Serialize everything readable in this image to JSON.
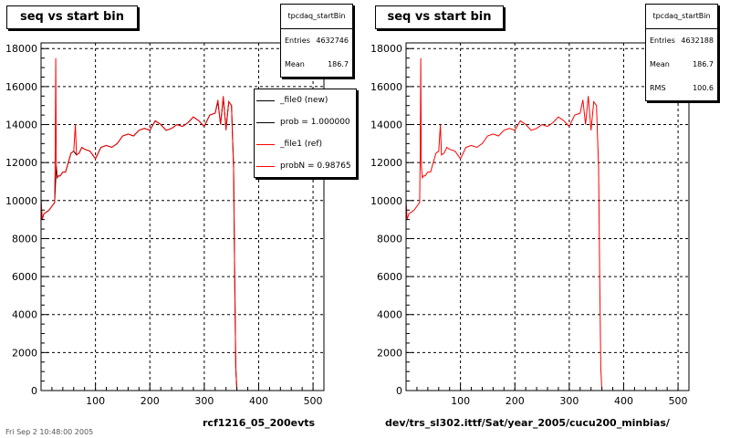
{
  "footer": {
    "date_text": "Fri Sep  2 10:48:00 2005"
  },
  "legend": {
    "entries": [
      {
        "label": "_file0 (new)",
        "color": "#000000"
      },
      {
        "label": "prob = 1.000000",
        "color": "#000000"
      },
      {
        "label": "_file1 (ref)",
        "color": "#ff0000"
      },
      {
        "label": "probN = 0.98765",
        "color": "#ff0000"
      }
    ]
  },
  "chart_data": [
    {
      "type": "line",
      "title": "seq vs start bin",
      "xlabel": "rcf1216_05_200evts",
      "ylabel": "",
      "xlim": [
        0,
        520
      ],
      "ylim": [
        0,
        18300
      ],
      "xticks": [
        100,
        200,
        300,
        400,
        500
      ],
      "yticks": [
        0,
        2000,
        4000,
        6000,
        8000,
        10000,
        12000,
        14000,
        16000,
        18000
      ],
      "grid": true,
      "stats": {
        "name": "tpcdaq_startBin",
        "rows": [
          {
            "label": "Entries",
            "value": "4632746"
          },
          {
            "label": "Mean",
            "value": "186.7"
          }
        ]
      },
      "series": [
        {
          "name": "_file0 (new)",
          "color": "#000000",
          "x": [
            0,
            2,
            5,
            10,
            15,
            20,
            25,
            28,
            30,
            32,
            35,
            40,
            45,
            50,
            55,
            60,
            65,
            70,
            75,
            80,
            90,
            100,
            110,
            120,
            130,
            140,
            150,
            160,
            170,
            180,
            190,
            200,
            210,
            220,
            230,
            240,
            250,
            260,
            270,
            280,
            290,
            300,
            310,
            320,
            325,
            330,
            335,
            340,
            345,
            350,
            354,
            356,
            358,
            360,
            365
          ],
          "y": [
            10000,
            9000,
            9300,
            9400,
            9500,
            9700,
            9900,
            11800,
            11200,
            11300,
            11300,
            11500,
            11500,
            12000,
            12500,
            12600,
            12400,
            12500,
            12800,
            12700,
            12600,
            12200,
            12800,
            12900,
            12800,
            13000,
            13400,
            13500,
            13400,
            13700,
            13800,
            13700,
            14200,
            14000,
            13700,
            13800,
            14000,
            13900,
            14100,
            14400,
            14200,
            13900,
            14500,
            14600,
            15200,
            14000,
            15400,
            13800,
            15200,
            15000,
            11700,
            6000,
            1200,
            0,
            0
          ]
        },
        {
          "name": "_file1 (ref)",
          "color": "#ff0000",
          "x": [
            0,
            2,
            5,
            10,
            15,
            20,
            25,
            26,
            27,
            28,
            30,
            32,
            35,
            40,
            45,
            50,
            55,
            60,
            63,
            65,
            70,
            75,
            80,
            90,
            100,
            110,
            120,
            130,
            140,
            150,
            160,
            170,
            180,
            190,
            200,
            210,
            220,
            230,
            240,
            250,
            260,
            270,
            280,
            290,
            300,
            310,
            320,
            325,
            330,
            335,
            340,
            345,
            350,
            354,
            356,
            358,
            360,
            365
          ],
          "y": [
            10000,
            9000,
            9300,
            9400,
            9500,
            9700,
            9900,
            12500,
            17500,
            11800,
            11200,
            11300,
            11300,
            11500,
            11500,
            12000,
            12500,
            12600,
            14000,
            12400,
            12500,
            12800,
            12700,
            12600,
            12200,
            12800,
            12900,
            12800,
            13000,
            13400,
            13500,
            13400,
            13700,
            13800,
            13700,
            14200,
            14000,
            13700,
            13800,
            14000,
            13900,
            14100,
            14400,
            14200,
            13900,
            14500,
            14600,
            15300,
            14000,
            15500,
            13700,
            15200,
            15000,
            11700,
            6000,
            1200,
            0,
            0
          ]
        }
      ]
    },
    {
      "type": "line",
      "title": "seq vs start bin",
      "xlabel": "dev/trs_sl302.ittf/Sat/year_2005/cucu200_minbias/",
      "ylabel": "",
      "xlim": [
        0,
        520
      ],
      "ylim": [
        0,
        18300
      ],
      "xticks": [
        100,
        200,
        300,
        400,
        500
      ],
      "yticks": [
        0,
        2000,
        4000,
        6000,
        8000,
        10000,
        12000,
        14000,
        16000,
        18000
      ],
      "grid": true,
      "stats": {
        "name": "tpcdaq_startBin",
        "rows": [
          {
            "label": "Entries",
            "value": "4632188"
          },
          {
            "label": "Mean",
            "value": "186.7"
          },
          {
            "label": "RMS",
            "value": "100.6"
          }
        ]
      },
      "series": [
        {
          "name": "",
          "color": "#ff0000",
          "x": [
            0,
            2,
            5,
            10,
            15,
            20,
            25,
            26,
            27,
            28,
            30,
            32,
            35,
            40,
            45,
            50,
            55,
            60,
            63,
            65,
            70,
            75,
            80,
            90,
            100,
            110,
            120,
            130,
            140,
            150,
            160,
            170,
            180,
            190,
            200,
            210,
            220,
            230,
            240,
            250,
            260,
            270,
            280,
            290,
            300,
            310,
            320,
            325,
            330,
            335,
            340,
            345,
            350,
            354,
            356,
            358,
            360,
            365
          ],
          "y": [
            10000,
            9000,
            9300,
            9400,
            9500,
            9700,
            9900,
            12500,
            17500,
            11800,
            11200,
            11300,
            11300,
            11500,
            11500,
            12000,
            12500,
            12600,
            14000,
            12400,
            12500,
            12800,
            12700,
            12600,
            12200,
            12800,
            12900,
            12800,
            13000,
            13400,
            13500,
            13400,
            13700,
            13800,
            13700,
            14200,
            14000,
            13700,
            13800,
            14000,
            13900,
            14100,
            14400,
            14200,
            13900,
            14500,
            14600,
            15300,
            14000,
            15500,
            13700,
            15200,
            15000,
            11700,
            6000,
            1200,
            0,
            0
          ]
        }
      ]
    }
  ]
}
